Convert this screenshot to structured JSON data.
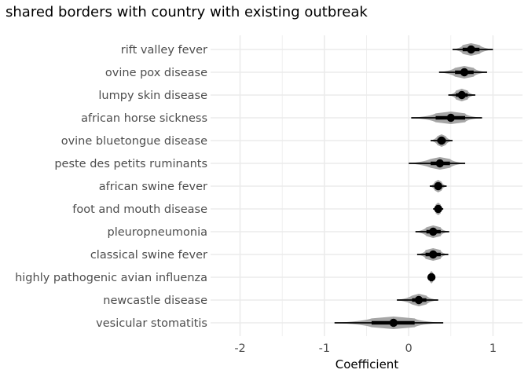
{
  "chart_data": {
    "type": "interval",
    "title": "shared borders with country with existing outbreak",
    "xlabel": "Coefficient",
    "ylabel": "",
    "xlim": [
      -2.35,
      1.35
    ],
    "x_ticks": [
      -2,
      -1,
      0,
      1
    ],
    "x_tick_labels": [
      "-2",
      "-1",
      "0",
      "1"
    ],
    "grid": true,
    "categories": [
      "rift valley fever",
      "ovine pox disease",
      "lumpy skin disease",
      "african horse sickness",
      "ovine bluetongue disease",
      "peste des petits ruminants",
      "african swine fever",
      "foot and mouth disease",
      "pleuropneumonia",
      "classical swine fever",
      "highly pathogenic avian influenza",
      "newcastle disease",
      "vesicular stomatitis"
    ],
    "series": [
      {
        "values": [
          0.74,
          0.66,
          0.63,
          0.5,
          0.39,
          0.37,
          0.35,
          0.35,
          0.29,
          0.29,
          0.27,
          0.12,
          -0.18
        ],
        "inner_low": [
          0.64,
          0.55,
          0.56,
          0.32,
          0.34,
          0.26,
          0.31,
          0.32,
          0.21,
          0.2,
          0.25,
          0.04,
          -0.44
        ],
        "inner_high": [
          0.84,
          0.77,
          0.7,
          0.67,
          0.44,
          0.49,
          0.39,
          0.38,
          0.38,
          0.38,
          0.29,
          0.21,
          0.07
        ],
        "outer_low": [
          0.52,
          0.36,
          0.47,
          0.03,
          0.26,
          0.0,
          0.25,
          0.29,
          0.08,
          0.1,
          0.24,
          -0.14,
          -0.88
        ],
        "outer_high": [
          1.0,
          0.93,
          0.79,
          0.87,
          0.52,
          0.67,
          0.45,
          0.41,
          0.48,
          0.47,
          0.3,
          0.35,
          0.41
        ]
      }
    ],
    "colors": {
      "point": "#000000",
      "density": "#a6a6a6",
      "grid": "#ebebeb",
      "text": "#4d4d4d"
    }
  }
}
